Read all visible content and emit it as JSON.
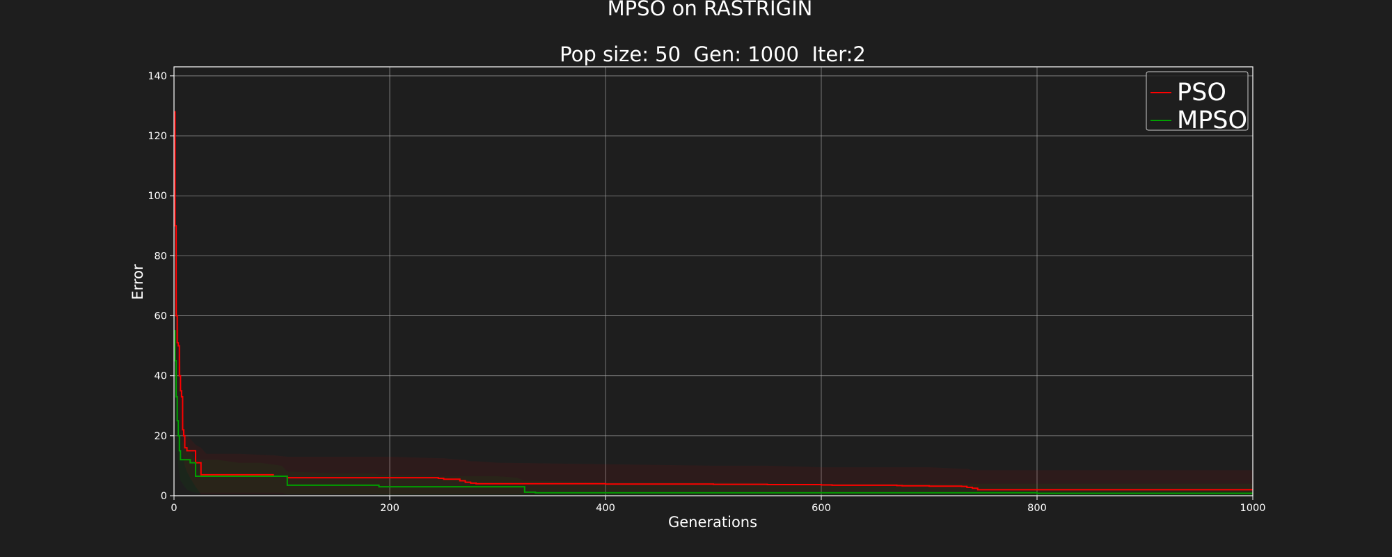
{
  "chart_data": {
    "type": "line",
    "title": "MPSO on RASTRIGIN",
    "subtitle": "Pop size: 50  Gen: 1000  Iter:2",
    "xlabel": "Generations",
    "ylabel": "Error",
    "xlim": [
      0,
      1000
    ],
    "ylim": [
      0,
      143
    ],
    "xticks": [
      0,
      200,
      400,
      600,
      800,
      1000
    ],
    "yticks": [
      0,
      20,
      40,
      60,
      80,
      100,
      120,
      140
    ],
    "grid": true,
    "legend_position": "top-right",
    "background_color": "#1e1e1e",
    "series": [
      {
        "name": "PSO",
        "color": "#ff0000",
        "x": [
          0,
          1,
          2,
          3,
          4,
          5,
          6,
          7,
          8,
          9,
          10,
          12,
          15,
          20,
          25,
          30,
          60,
          90,
          92,
          105,
          110,
          150,
          200,
          245,
          250,
          265,
          270,
          275,
          280,
          300,
          400,
          500,
          550,
          600,
          610,
          620,
          670,
          675,
          700,
          730,
          735,
          740,
          745,
          800,
          900,
          1000
        ],
        "y": [
          128,
          90,
          60,
          51,
          50,
          40,
          35,
          33,
          22,
          20,
          16,
          15,
          15,
          11,
          7,
          7,
          7,
          7,
          6.5,
          6,
          6,
          6,
          6,
          5.8,
          5.5,
          5,
          4.5,
          4.2,
          4,
          4,
          3.9,
          3.8,
          3.7,
          3.6,
          3.5,
          3.5,
          3.4,
          3.3,
          3.2,
          3.1,
          2.8,
          2.5,
          2,
          2,
          2,
          2
        ],
        "band_upper": [
          140,
          110,
          80,
          70,
          60,
          50,
          45,
          40,
          30,
          26,
          22,
          20,
          19,
          17,
          16,
          14,
          14,
          13.5,
          13.5,
          13,
          13,
          13,
          13,
          12.5,
          12.5,
          12,
          12,
          11.5,
          11.5,
          11,
          10.5,
          10,
          10,
          9.5,
          9.5,
          9.5,
          9.5,
          9.5,
          9.5,
          9,
          9,
          8.5,
          8.5,
          8.5,
          8.5,
          8.5
        ],
        "band_lower": [
          110,
          70,
          40,
          32,
          30,
          25,
          22,
          20,
          14,
          12,
          10,
          8,
          6,
          3,
          0.5,
          0.5,
          0.5,
          0.5,
          0.5,
          0.5,
          0.5,
          0.5,
          0.5,
          0.5,
          0.5,
          0.5,
          0.5,
          0.5,
          0.5,
          0.5,
          0.5,
          0.5,
          0.5,
          0.5,
          0.5,
          0.5,
          0.5,
          0.5,
          0.5,
          0.5,
          0.5,
          0.5,
          0.5,
          0.5,
          0.5,
          0.5
        ]
      },
      {
        "name": "MPSO",
        "color": "#00a000",
        "x": [
          0,
          1,
          2,
          3,
          4,
          5,
          6,
          8,
          10,
          12,
          15,
          20,
          40,
          60,
          80,
          100,
          105,
          110,
          150,
          185,
          190,
          200,
          250,
          300,
          318,
          325,
          330,
          335,
          400,
          500,
          600,
          700,
          800,
          900,
          1000
        ],
        "y": [
          55,
          45,
          33,
          25,
          20,
          15,
          12,
          12,
          12,
          12,
          11,
          6.5,
          6.5,
          6.5,
          6.5,
          6.5,
          3.5,
          3.5,
          3.5,
          3.5,
          3,
          3,
          3,
          3,
          3,
          1.2,
          1.2,
          1,
          1,
          1,
          1,
          1,
          0.8,
          0.8,
          0.8
        ],
        "band_upper": [
          70,
          60,
          45,
          35,
          30,
          25,
          20,
          18,
          17,
          16,
          15,
          12,
          12,
          11,
          11,
          10,
          8,
          8,
          7.5,
          7.5,
          7,
          7,
          6.5,
          6.5,
          6,
          5,
          5,
          5,
          4.5,
          4.5,
          4,
          4,
          4,
          4,
          4
        ],
        "band_lower": [
          40,
          30,
          20,
          15,
          10,
          7,
          5,
          4,
          3,
          2,
          1.5,
          1,
          1,
          1,
          1,
          1,
          0.5,
          0.5,
          0.5,
          0.5,
          0.3,
          0.3,
          0.3,
          0.3,
          0.3,
          0.1,
          0.1,
          0.1,
          0.1,
          0.1,
          0.1,
          0.1,
          0.1,
          0.1,
          0.1
        ]
      }
    ]
  }
}
